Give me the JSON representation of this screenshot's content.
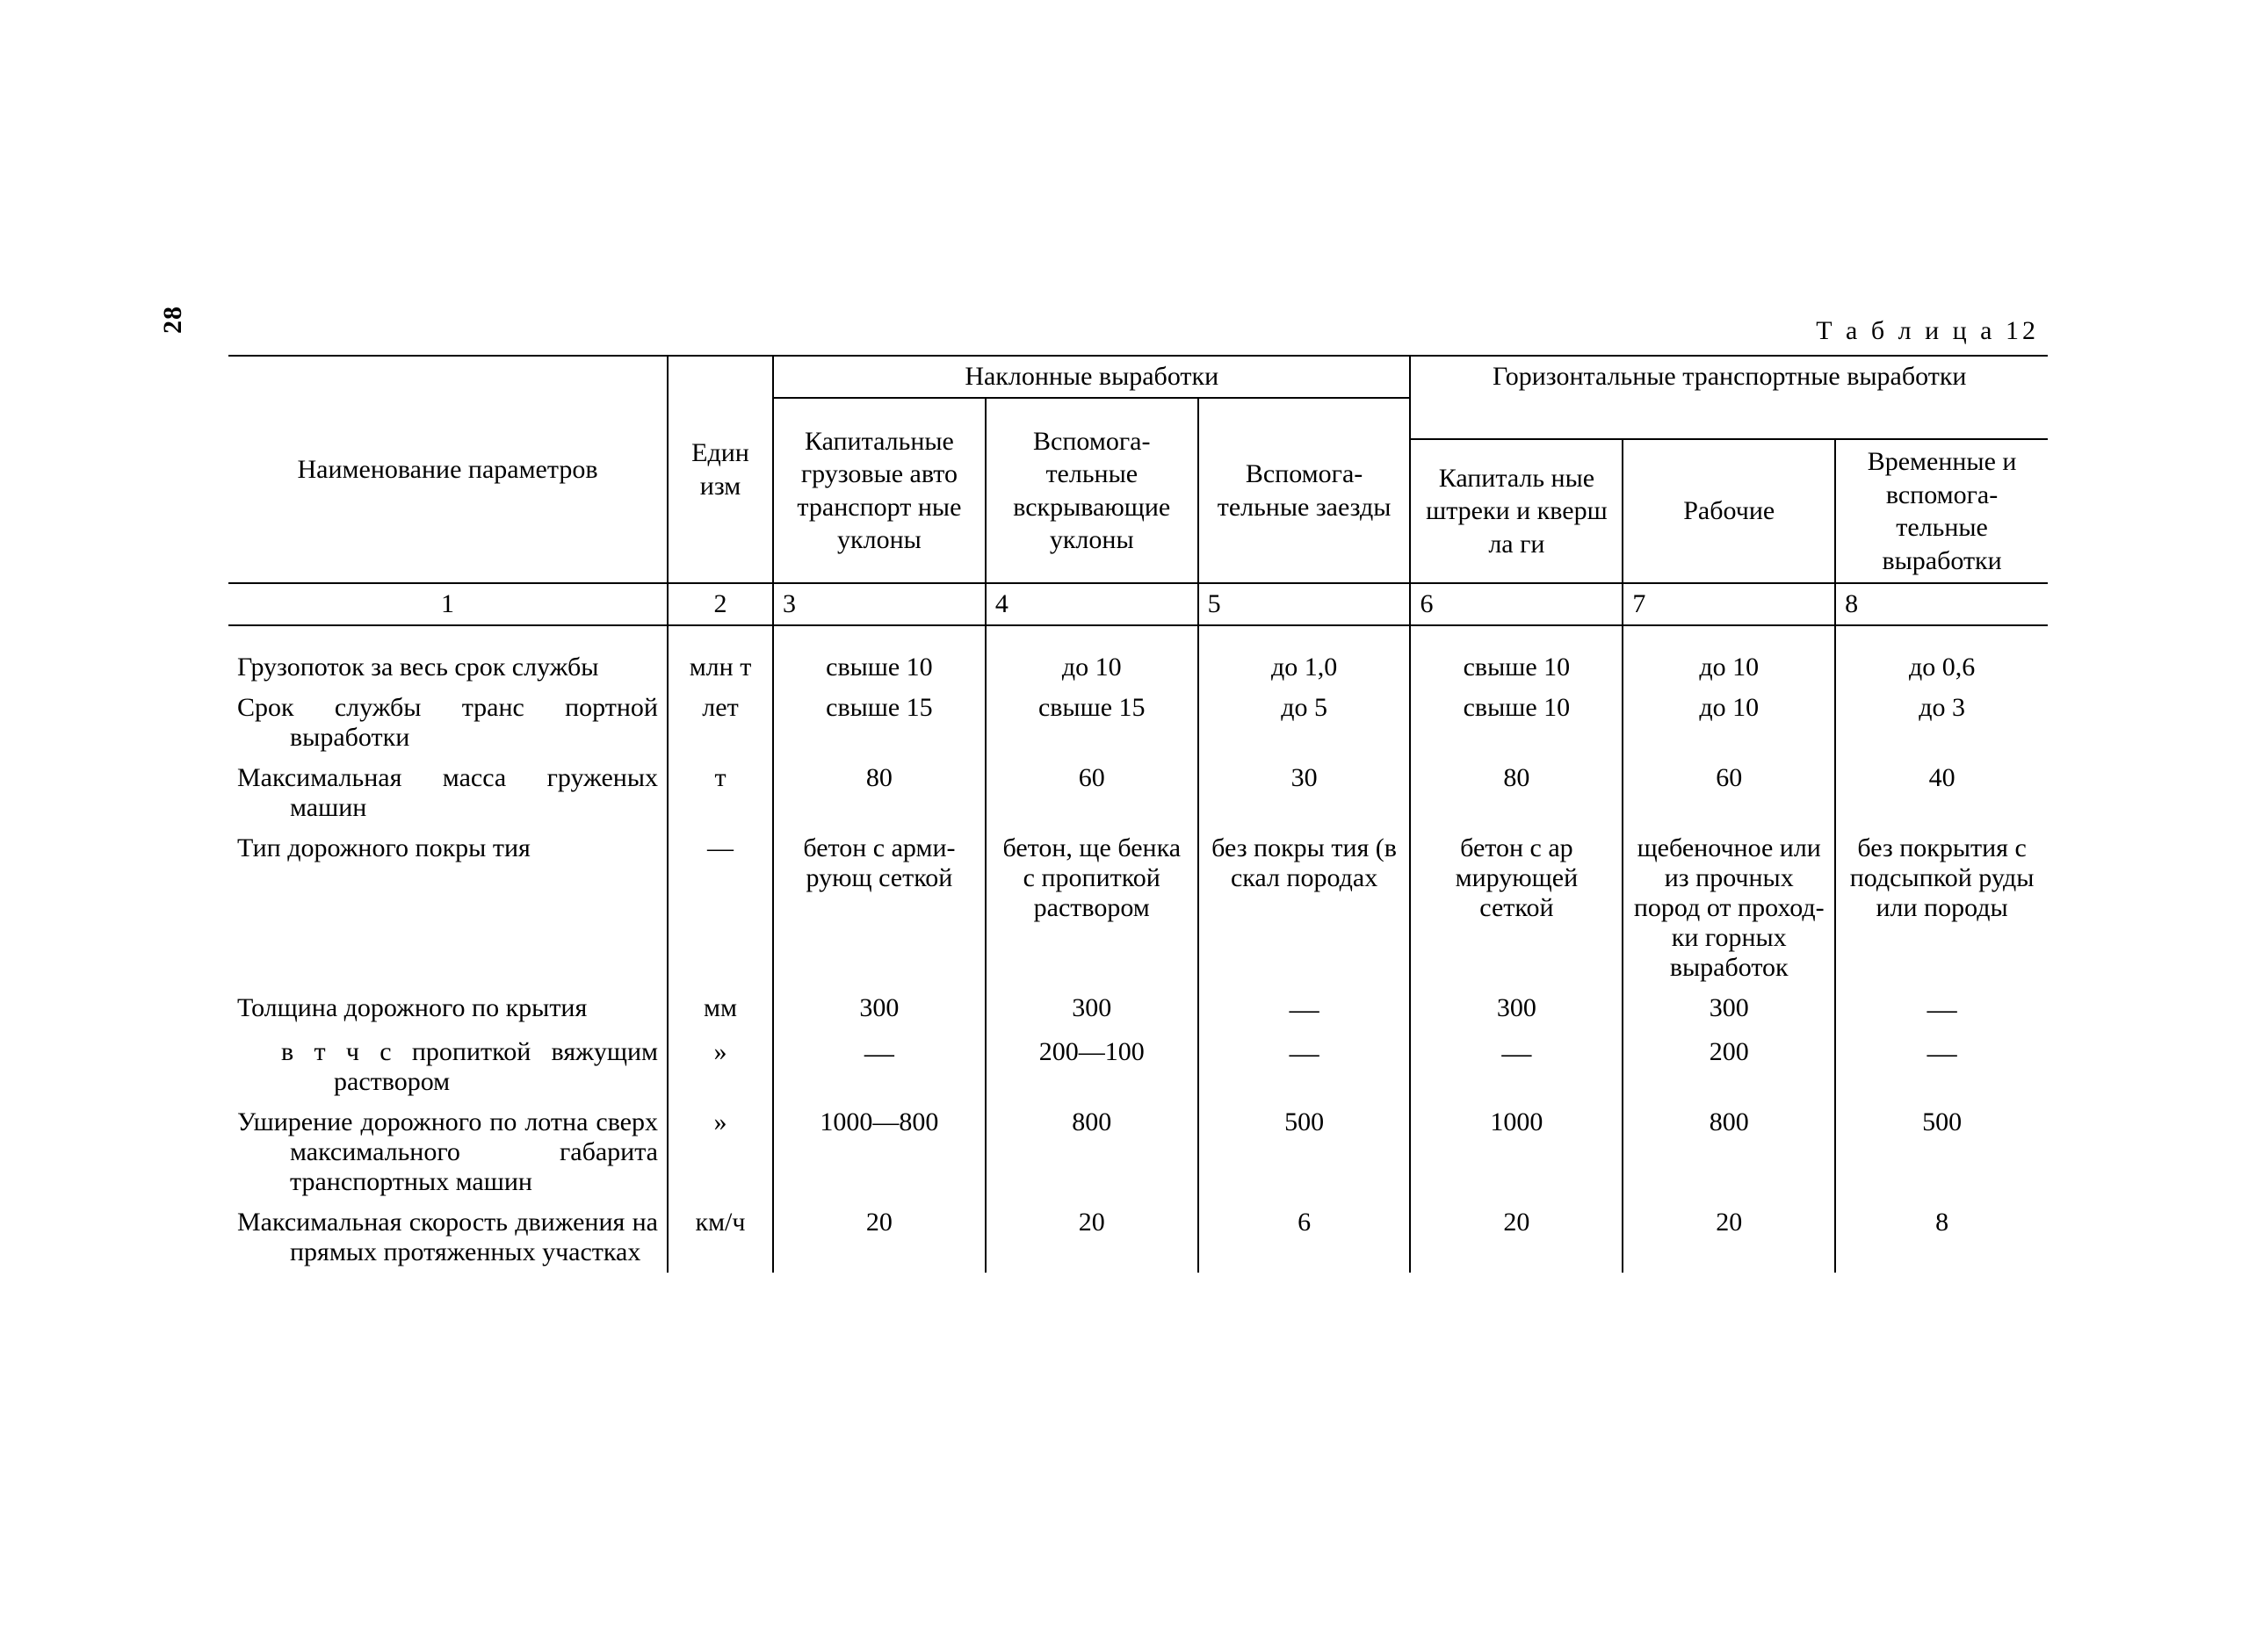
{
  "page_number": "28",
  "caption": "Т а б л и ц а  12",
  "headers": {
    "col1": "Наименование параметров",
    "col2": "Един изм",
    "group_inclined": "Наклонные выработки",
    "group_horizontal": "Горизонтальные транспортные выработки",
    "col3": "Капиталь­ные грузо­вые авто транспорт ные уклоны",
    "col4": "Вспомога­тельные вскрываю­щие уклоны",
    "col5": "Вспомога­тельные заезды",
    "col6": "Капиталь ные штреки и кверш ла ги",
    "col7": "Рабочие",
    "col8": "Временные и вспомога­тельные выработки"
  },
  "col_numbers": [
    "1",
    "2",
    "3",
    "4",
    "5",
    "6",
    "7",
    "8"
  ],
  "rows": [
    {
      "label": "Грузопоток за весь срок службы",
      "unit": "млн т",
      "c3": "свыше 10",
      "c4": "до 10",
      "c5": "до 1,0",
      "c6": "свыше 10",
      "c7": "до 10",
      "c8": "до 0,6"
    },
    {
      "label": "Срок службы транс портной выработки",
      "unit": "лет",
      "c3": "свыше 15",
      "c4": "свыше 15",
      "c5": "до 5",
      "c6": "свыше 10",
      "c7": "до 10",
      "c8": "до 3"
    },
    {
      "label": "Максимальная масса груженых машин",
      "unit": "т",
      "c3": "80",
      "c4": "60",
      "c5": "30",
      "c6": "80",
      "c7": "60",
      "c8": "40"
    },
    {
      "label": "Тип дорожного покры тия",
      "unit": "—",
      "c3": "бетон с арми­рующ сеткой",
      "c4": "бетон, ще бенка с пропиткой раствором",
      "c5": "без покры тия (в скал породах",
      "c6": "бетон с ар мирующей сеткой",
      "c7": "щебеночное или из про­чных пород от проход­ки горных выработок",
      "c8": "без покры­тия с под­сыпкой руды или породы"
    },
    {
      "label": "Толщина дорожного по крытия",
      "unit": "мм",
      "c3": "300",
      "c4": "300",
      "c5": "—",
      "c6": "300",
      "c7": "300",
      "c8": "—"
    },
    {
      "label": "в т ч с пропиткой вяжущим раствором",
      "sub": true,
      "unit": "»",
      "c3": "—",
      "c4": "200—100",
      "c5": "—",
      "c6": "—",
      "c7": "200",
      "c8": "—"
    },
    {
      "label": "Уширение дорожного по лотна сверх макси­мального габарита транспортных машин",
      "unit": "»",
      "c3": "1000—800",
      "c4": "800",
      "c5": "500",
      "c6": "1000",
      "c7": "800",
      "c8": "500"
    },
    {
      "label": "Максимальная скорость движения на прямых протяженных участках",
      "unit": "км/ч",
      "c3": "20",
      "c4": "20",
      "c5": "6",
      "c6": "20",
      "c7": "20",
      "c8": "8"
    }
  ]
}
